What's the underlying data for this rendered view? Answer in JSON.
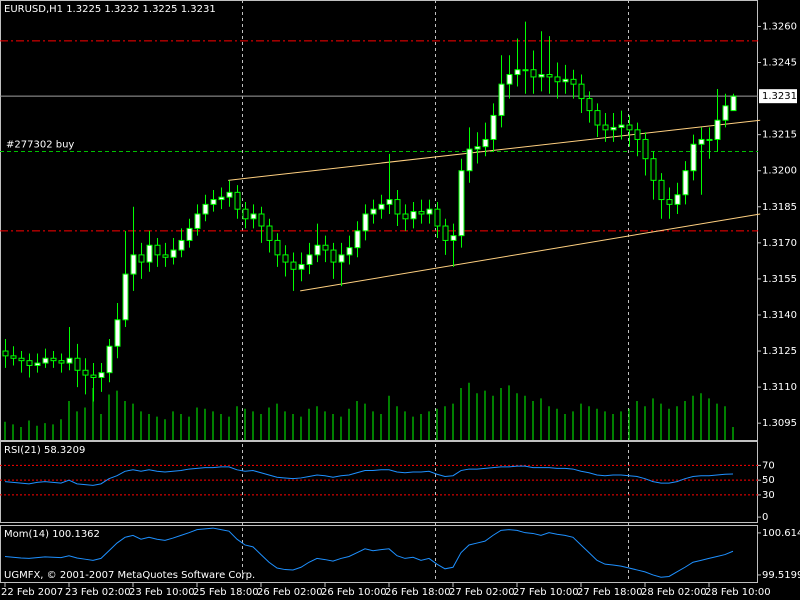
{
  "chart_data": [
    {
      "type": "candlestick",
      "title": "EURUSD,H1  1.3225 1.3232 1.3225 1.3231",
      "categories": [
        "22 Feb 2007",
        null,
        null,
        null,
        null,
        null,
        null,
        null,
        "23 Feb 02:00",
        null,
        null,
        null,
        null,
        null,
        null,
        null,
        "23 Feb 10:00",
        null,
        null,
        null,
        null,
        null,
        null,
        null,
        "25 Feb 18:00",
        null,
        null,
        null,
        null,
        null,
        null,
        null,
        "26 Feb 02:00",
        null,
        null,
        null,
        null,
        null,
        null,
        null,
        "26 Feb 10:00",
        null,
        null,
        null,
        null,
        null,
        null,
        null,
        "26 Feb 18:00",
        null,
        null,
        null,
        null,
        null,
        null,
        null,
        "27 Feb 02:00",
        null,
        null,
        null,
        null,
        null,
        null,
        null,
        "27 Feb 10:00",
        null,
        null,
        null,
        null,
        null,
        null,
        null,
        "27 Feb 18:00",
        null,
        null,
        null,
        null,
        null,
        null,
        null,
        "28 Feb 02:00",
        null,
        null,
        null,
        null,
        null,
        null,
        null,
        "28 Feb 10:00",
        null,
        null,
        null
      ],
      "open": [
        1.3125,
        1.3123,
        1.3122,
        1.3121,
        1.3119,
        1.312,
        1.3122,
        1.3121,
        1.312,
        1.3122,
        1.3117,
        1.3115,
        1.3114,
        1.3116,
        1.3127,
        1.3138,
        1.3157,
        1.3165,
        1.3162,
        1.3169,
        1.3165,
        1.3164,
        1.3167,
        1.3171,
        1.3176,
        1.3182,
        1.3186,
        1.3188,
        1.3189,
        1.3191,
        1.3184,
        1.318,
        1.3182,
        1.3177,
        1.3171,
        1.3165,
        1.3162,
        1.3159,
        1.3161,
        1.3165,
        1.3169,
        1.3167,
        1.3162,
        1.3165,
        1.3168,
        1.3175,
        1.3182,
        1.3184,
        1.3186,
        1.3188,
        1.3182,
        1.318,
        1.3183,
        1.3182,
        1.3184,
        1.3177,
        1.3171,
        1.3173,
        1.32,
        1.3209,
        1.321,
        1.3213,
        1.3223,
        1.3236,
        1.324,
        1.3242,
        1.3242,
        1.3239,
        1.324,
        1.3239,
        1.3237,
        1.3238,
        1.3236,
        1.323,
        1.3225,
        1.3219,
        1.3217,
        1.3218,
        1.3219,
        1.3217,
        1.3213,
        1.3205,
        1.3196,
        1.3188,
        1.3186,
        1.319,
        1.32,
        1.3211,
        1.3213,
        1.3213,
        1.3221,
        1.3225
      ],
      "high": [
        1.313,
        1.3127,
        1.3125,
        1.3124,
        1.3124,
        1.3126,
        1.3125,
        1.3124,
        1.3135,
        1.3128,
        1.3122,
        1.312,
        1.312,
        1.313,
        1.3145,
        1.3175,
        1.3185,
        1.317,
        1.3175,
        1.3172,
        1.317,
        1.3172,
        1.3176,
        1.318,
        1.3186,
        1.319,
        1.3192,
        1.3193,
        1.3196,
        1.3194,
        1.3187,
        1.3186,
        1.3185,
        1.318,
        1.3174,
        1.3169,
        1.3166,
        1.3166,
        1.317,
        1.3178,
        1.3173,
        1.317,
        1.317,
        1.3173,
        1.3179,
        1.3186,
        1.3188,
        1.319,
        1.3207,
        1.3192,
        1.3186,
        1.3187,
        1.3188,
        1.3188,
        1.3187,
        1.318,
        1.3178,
        1.3205,
        1.3218,
        1.3216,
        1.322,
        1.3228,
        1.3248,
        1.3248,
        1.3255,
        1.3262,
        1.325,
        1.3258,
        1.3256,
        1.3245,
        1.3244,
        1.3242,
        1.324,
        1.3233,
        1.3228,
        1.3224,
        1.3224,
        1.3225,
        1.3223,
        1.322,
        1.3216,
        1.3208,
        1.3199,
        1.3193,
        1.3195,
        1.3204,
        1.3215,
        1.3218,
        1.3218,
        1.3234,
        1.3232,
        1.3232
      ],
      "low": [
        1.3118,
        1.3119,
        1.3116,
        1.3114,
        1.3116,
        1.3118,
        1.3118,
        1.3116,
        1.3117,
        1.311,
        1.3107,
        1.3104,
        1.3108,
        1.3112,
        1.3122,
        1.3135,
        1.315,
        1.3155,
        1.3158,
        1.316,
        1.316,
        1.3161,
        1.3164,
        1.3168,
        1.3173,
        1.3179,
        1.3183,
        1.3184,
        1.3185,
        1.318,
        1.3176,
        1.3176,
        1.317,
        1.3166,
        1.316,
        1.3156,
        1.315,
        1.3154,
        1.3157,
        1.3162,
        1.3162,
        1.3155,
        1.3152,
        1.3161,
        1.3164,
        1.3171,
        1.3178,
        1.318,
        1.3182,
        1.3177,
        1.3175,
        1.3176,
        1.3178,
        1.3178,
        1.3172,
        1.3165,
        1.316,
        1.3168,
        1.3195,
        1.3203,
        1.3206,
        1.3208,
        1.3218,
        1.323,
        1.3235,
        1.3232,
        1.3232,
        1.3233,
        1.3232,
        1.323,
        1.3232,
        1.323,
        1.3224,
        1.322,
        1.3214,
        1.3212,
        1.3212,
        1.3213,
        1.321,
        1.3206,
        1.3198,
        1.3188,
        1.318,
        1.318,
        1.3182,
        1.3186,
        1.3196,
        1.319,
        1.3205,
        1.3208,
        1.3218,
        1.3225
      ],
      "close": [
        1.3123,
        1.3122,
        1.3121,
        1.3119,
        1.312,
        1.3122,
        1.3121,
        1.312,
        1.3122,
        1.3117,
        1.3115,
        1.3114,
        1.3116,
        1.3127,
        1.3138,
        1.3157,
        1.3165,
        1.3162,
        1.3169,
        1.3165,
        1.3164,
        1.3167,
        1.3171,
        1.3176,
        1.3182,
        1.3186,
        1.3188,
        1.3189,
        1.3191,
        1.3184,
        1.318,
        1.3182,
        1.3177,
        1.3171,
        1.3165,
        1.3162,
        1.3159,
        1.3161,
        1.3165,
        1.3169,
        1.3167,
        1.3162,
        1.3165,
        1.3168,
        1.3175,
        1.3182,
        1.3184,
        1.3186,
        1.3188,
        1.3182,
        1.318,
        1.3183,
        1.3182,
        1.3184,
        1.3177,
        1.3171,
        1.3173,
        1.32,
        1.3209,
        1.321,
        1.3213,
        1.3223,
        1.3236,
        1.324,
        1.3242,
        1.3242,
        1.3239,
        1.324,
        1.3239,
        1.3237,
        1.3238,
        1.3236,
        1.323,
        1.3225,
        1.3219,
        1.3217,
        1.3218,
        1.3219,
        1.3217,
        1.3213,
        1.3205,
        1.3196,
        1.3188,
        1.3186,
        1.319,
        1.32,
        1.3211,
        1.3213,
        1.3213,
        1.3221,
        1.3227,
        1.3231
      ],
      "volume": [
        14,
        12,
        10,
        15,
        11,
        13,
        12,
        16,
        30,
        22,
        25,
        40,
        20,
        35,
        38,
        30,
        28,
        22,
        20,
        18,
        16,
        22,
        20,
        18,
        25,
        24,
        22,
        20,
        18,
        26,
        24,
        22,
        20,
        25,
        28,
        22,
        20,
        18,
        24,
        26,
        22,
        20,
        18,
        24,
        30,
        28,
        22,
        20,
        34,
        26,
        22,
        18,
        20,
        22,
        24,
        26,
        28,
        40,
        44,
        36,
        38,
        34,
        40,
        42,
        36,
        34,
        30,
        32,
        26,
        24,
        20,
        22,
        28,
        26,
        24,
        22,
        20,
        22,
        24,
        30,
        26,
        32,
        28,
        24,
        26,
        30,
        34,
        36,
        32,
        28,
        26,
        10
      ],
      "ylim": [
        1.3088,
        1.3271
      ],
      "yticks": [
        {
          "value": 1.326,
          "label": "1.3260"
        },
        1.3245,
        1.3215,
        {
          "value": 1.32,
          "label": "1.3200"
        },
        1.3185,
        {
          "value": 1.317,
          "label": "1.3170"
        },
        1.3155,
        {
          "value": 1.314,
          "label": "1.3140"
        },
        1.3125,
        {
          "value": 1.311,
          "label": "1.3110"
        },
        1.3095
      ],
      "hlines": [
        {
          "value": 1.3254,
          "color": "#ff0000"
        },
        {
          "value": 1.3175,
          "color": "#ff0000"
        }
      ],
      "order": {
        "label": "#277302 buy",
        "value": 1.3208,
        "color": "#00c000"
      },
      "bid": 1.3231,
      "trendlines": [
        {
          "x": [
            27.9,
            94.4
          ],
          "y": [
            1.3196,
            1.3221
          ]
        },
        {
          "x": [
            36.9,
            94.4
          ],
          "y": [
            1.315,
            1.3182
          ]
        }
      ],
      "trend_color": "#ffd080",
      "up_color": "#ffffff",
      "down_color": "#000000",
      "wick_color": "#00ff00",
      "volume_color": "#00ff00"
    },
    {
      "type": "line",
      "title": "RSI(21) 58.3209",
      "color": "#1e90ff",
      "values": [
        48,
        47,
        46,
        45,
        47,
        48,
        47,
        46,
        50,
        45,
        44,
        43,
        45,
        52,
        56,
        62,
        64,
        62,
        64,
        62,
        61,
        62,
        63,
        65,
        66,
        67,
        67,
        68,
        68,
        64,
        62,
        63,
        60,
        57,
        54,
        53,
        52,
        53,
        55,
        57,
        56,
        54,
        56,
        57,
        60,
        63,
        63,
        64,
        64,
        61,
        60,
        61,
        61,
        62,
        58,
        55,
        56,
        63,
        65,
        65,
        66,
        67,
        68,
        68,
        69,
        69,
        67,
        67,
        67,
        66,
        66,
        65,
        62,
        60,
        57,
        56,
        57,
        57,
        56,
        55,
        52,
        48,
        46,
        46,
        48,
        52,
        55,
        56,
        56,
        57,
        58,
        58.3209
      ],
      "ylim": [
        -8,
        103
      ],
      "yticks": [
        70,
        50,
        30,
        0
      ],
      "levels": [
        70,
        50,
        30
      ],
      "level_color": "#ff0000"
    },
    {
      "type": "line",
      "title": "Mom(14) 100.1362",
      "color": "#1e90ff",
      "annotation": "UGMFX, © 2001-2007 MetaQuotes Software Corp.",
      "values": [
        100.0,
        99.98,
        99.96,
        99.95,
        99.97,
        99.99,
        99.98,
        99.97,
        100.02,
        99.96,
        99.93,
        99.9,
        99.95,
        100.15,
        100.35,
        100.5,
        100.55,
        100.45,
        100.5,
        100.45,
        100.42,
        100.48,
        100.55,
        100.62,
        100.7,
        100.72,
        100.74,
        100.7,
        100.66,
        100.45,
        100.3,
        100.25,
        100.05,
        99.85,
        99.7,
        99.66,
        99.65,
        99.72,
        99.85,
        99.95,
        99.92,
        99.88,
        99.95,
        100.0,
        100.1,
        100.2,
        100.15,
        100.18,
        100.2,
        100.02,
        99.95,
        99.98,
        99.9,
        99.95,
        99.8,
        99.68,
        99.72,
        100.1,
        100.3,
        100.35,
        100.4,
        100.55,
        100.68,
        100.7,
        100.68,
        100.62,
        100.6,
        100.55,
        100.62,
        100.58,
        100.55,
        100.5,
        100.3,
        100.1,
        99.9,
        99.8,
        99.78,
        99.75,
        99.7,
        99.65,
        99.6,
        99.52,
        99.46,
        99.48,
        99.6,
        99.72,
        99.85,
        99.9,
        99.95,
        100.0,
        100.05,
        100.1362
      ],
      "ylim": [
        99.31,
        100.82
      ],
      "yticks": [
        100.614,
        99.5199
      ]
    }
  ]
}
